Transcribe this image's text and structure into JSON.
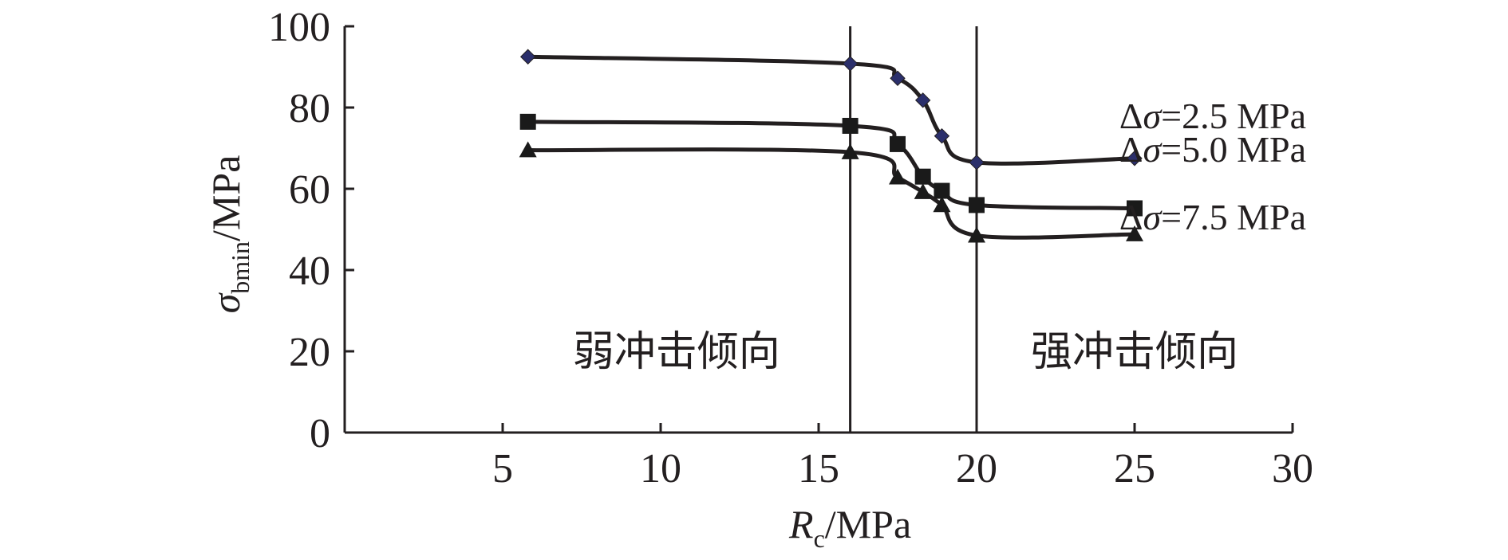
{
  "chart_data": {
    "type": "line",
    "x_axis": {
      "label_main": "R",
      "label_sub": "c",
      "label_unit": "/MPa",
      "ticks": [
        5,
        10,
        15,
        20,
        25,
        30
      ],
      "range": [
        0,
        30
      ]
    },
    "y_axis": {
      "label_main": "σ",
      "label_sub": "bmin",
      "label_unit": "/MPa",
      "ticks": [
        0,
        20,
        40,
        60,
        80,
        100
      ],
      "range": [
        0,
        100
      ]
    },
    "dividers": [
      16,
      20
    ],
    "regions": [
      {
        "label": "弱冲击倾向",
        "x": 10.5
      },
      {
        "label": "强冲击倾向",
        "x": 25
      }
    ],
    "series": [
      {
        "name": "Δσ=2.5 MPa",
        "label_delta": "Δ",
        "label_sigma": "σ",
        "label_rest": "=2.5 MPa",
        "marker": "diamond",
        "marker_color": "#2b2f6b",
        "x": [
          5.8,
          16.0,
          17.5,
          18.3,
          18.9,
          20.0,
          25.0
        ],
        "y": [
          92.5,
          90.8,
          87.2,
          81.8,
          73.0,
          66.5,
          67.5
        ]
      },
      {
        "name": "Δσ=5.0 MPa",
        "label_delta": "Δ",
        "label_sigma": "σ",
        "label_rest": "=5.0 MPa",
        "marker": "square",
        "marker_color": "#1a1a1a",
        "x": [
          5.8,
          16.0,
          17.5,
          18.3,
          18.9,
          20.0,
          25.0
        ],
        "y": [
          76.5,
          75.5,
          71.0,
          63.0,
          59.5,
          56.0,
          55.2
        ]
      },
      {
        "name": "Δσ=7.5 MPa",
        "label_delta": "Δ",
        "label_sigma": "σ",
        "label_rest": "=7.5 MPa",
        "marker": "triangle",
        "marker_color": "#1a1a1a",
        "x": [
          5.8,
          16.0,
          17.5,
          18.3,
          18.9,
          20.0,
          25.0
        ],
        "y": [
          69.5,
          69.0,
          62.8,
          59.2,
          56.0,
          48.5,
          48.8
        ]
      }
    ]
  }
}
